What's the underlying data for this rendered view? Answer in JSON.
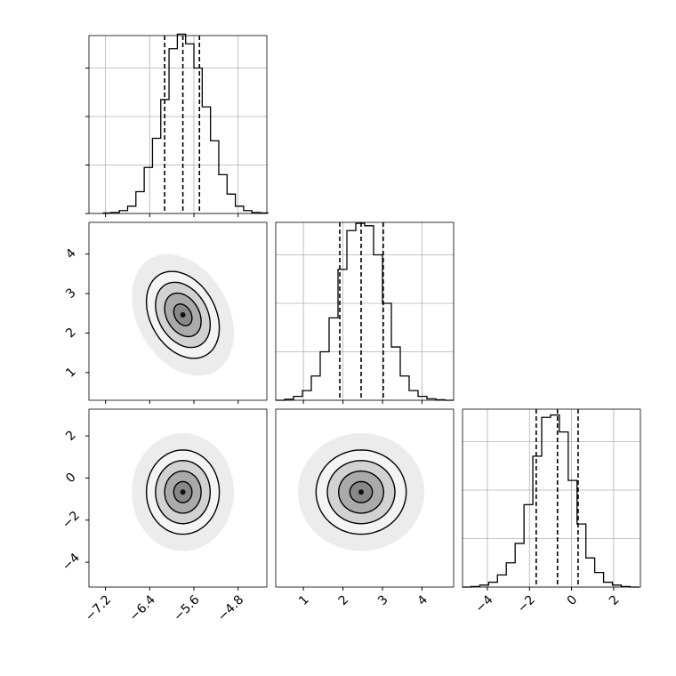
{
  "chart_data": {
    "type": "corner",
    "params": [
      {
        "lim": [
          -7.5,
          -4.28
        ],
        "ticks": [
          {
            "value": -7.2,
            "label": "−7.2"
          },
          {
            "value": -6.4,
            "label": "−6.4"
          },
          {
            "value": -5.6,
            "label": "−5.6"
          },
          {
            "value": -4.8,
            "label": "−4.8"
          }
        ],
        "quantiles": [
          -6.13,
          -5.8,
          -5.5
        ],
        "bins": [
          -7.25,
          -7.1,
          -6.95,
          -6.8,
          -6.65,
          -6.5,
          -6.35,
          -6.2,
          -6.05,
          -5.9,
          -5.75,
          -5.6,
          -5.45,
          -5.3,
          -5.15,
          -5.0,
          -4.85,
          -4.7,
          -4.55,
          -4.4,
          -4.25
        ],
        "values": [
          0.01,
          0.02,
          0.06,
          0.15,
          0.45,
          0.95,
          1.55,
          2.35,
          3.4,
          3.7,
          3.5,
          3.0,
          2.2,
          1.5,
          0.8,
          0.4,
          0.15,
          0.06,
          0.02,
          0.01
        ]
      },
      {
        "lim": [
          0.3,
          4.8
        ],
        "ticks": [
          1,
          2,
          3,
          4
        ],
        "quantiles": [
          1.92,
          2.46,
          3.02
        ],
        "bins": [
          0.3,
          0.525,
          0.75,
          0.975,
          1.2,
          1.425,
          1.65,
          1.875,
          2.1,
          2.325,
          2.55,
          2.775,
          3.0,
          3.225,
          3.45,
          3.675,
          3.9,
          4.125,
          4.35,
          4.575,
          4.8
        ],
        "values": [
          0.0,
          0.02,
          0.08,
          0.2,
          0.5,
          1.0,
          1.7,
          2.7,
          3.5,
          3.65,
          3.6,
          3.0,
          2.0,
          1.1,
          0.5,
          0.2,
          0.08,
          0.03,
          0.01,
          0.0
        ]
      },
      {
        "lim": [
          -5.18,
          3.27
        ],
        "ticks": [
          {
            "value": -4,
            "label": "−4"
          },
          {
            "value": -2,
            "label": "−2"
          },
          0,
          2
        ],
        "quantiles": [
          -1.68,
          -0.67,
          0.31
        ],
        "bins": [
          -5.2,
          -4.78,
          -4.36,
          -3.94,
          -3.52,
          -3.1,
          -2.68,
          -2.26,
          -1.84,
          -1.42,
          -1.0,
          -0.58,
          -0.16,
          0.26,
          0.68,
          1.1,
          1.52,
          1.94,
          2.36,
          2.78,
          3.2
        ],
        "values": [
          0,
          0.01,
          0.04,
          0.1,
          0.25,
          0.5,
          0.9,
          1.7,
          2.7,
          3.5,
          3.55,
          3.2,
          2.2,
          1.3,
          0.6,
          0.3,
          0.1,
          0.04,
          0.01,
          0
        ]
      }
    ],
    "hist_ylim": [
      0,
      3.67
    ],
    "hist_yticks": [
      0,
      1,
      2,
      3
    ],
    "contour_levels": [
      0.5,
      1,
      1.5,
      2
    ],
    "pairs": [
      {
        "x": 0,
        "y": 1,
        "center": [
          -5.8,
          2.46
        ],
        "sigma": [
          0.33,
          0.55
        ],
        "rho": -0.3
      },
      {
        "x": 0,
        "y": 2,
        "center": [
          -5.8,
          -0.67
        ],
        "sigma": [
          0.33,
          1.0
        ],
        "rho": 0
      },
      {
        "x": 1,
        "y": 2,
        "center": [
          2.46,
          -0.67
        ],
        "sigma": [
          0.57,
          1.0
        ],
        "rho": 0
      }
    ]
  }
}
